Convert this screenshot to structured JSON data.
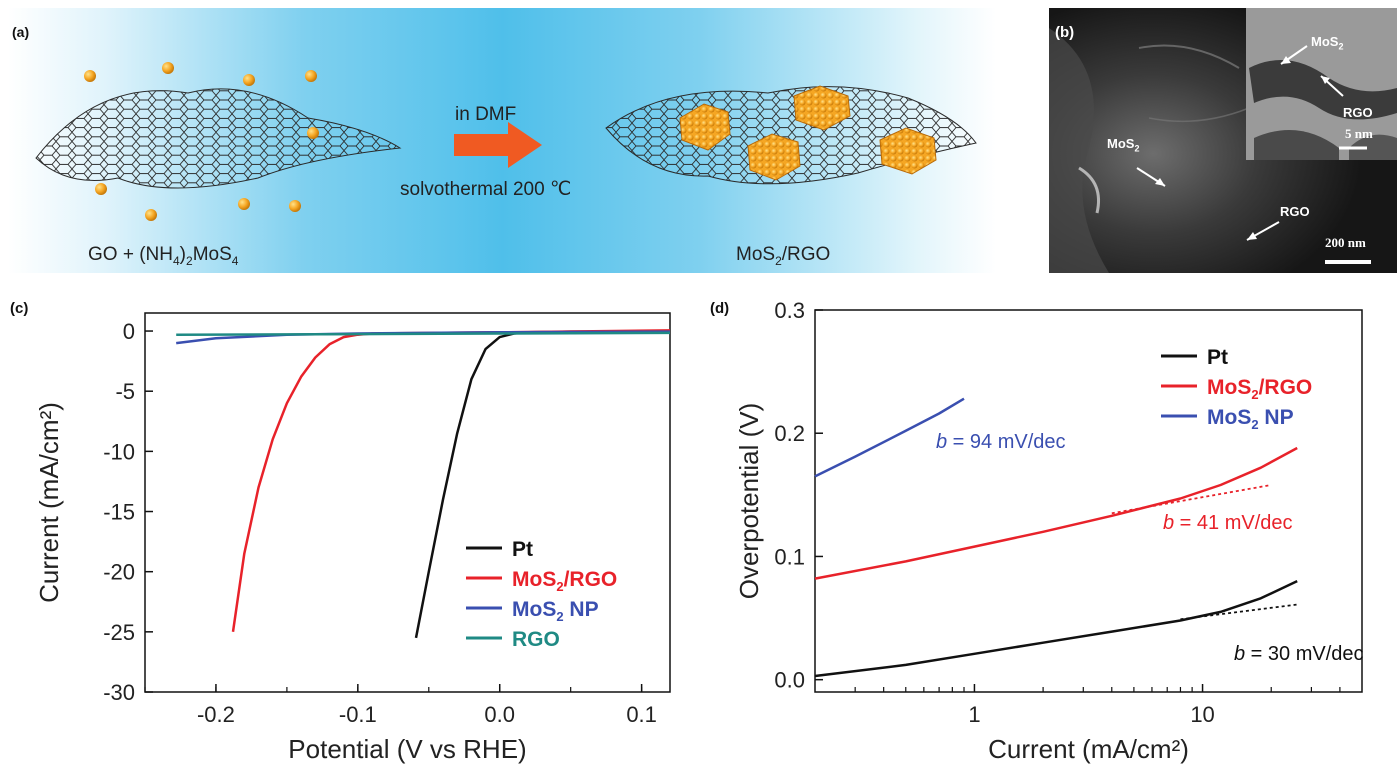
{
  "panel_a": {
    "label": "(a)",
    "arrow_top": "in DMF",
    "arrow_bottom": "solvothermal 200 ℃",
    "left_caption": {
      "t1": "GO + (NH",
      "s1": "4",
      "t2": ")",
      "s2": "2",
      "t3": "MoS",
      "s3": "4"
    },
    "right_caption": {
      "t1": "MoS",
      "s1": "2",
      "t2": "/RGO"
    }
  },
  "panel_b": {
    "label": "(b)",
    "mos2_main": {
      "t": "MoS",
      "s": "2"
    },
    "rgo_main": "RGO",
    "scale_main": "200 nm",
    "mos2_inset": {
      "t": "MoS",
      "s": "2"
    },
    "rgo_inset": "RGO",
    "scale_inset": "5 nm"
  },
  "chart_data": [
    {
      "type": "line",
      "panel": "(c)",
      "xlabel": "Potential (V vs RHE)",
      "ylabel": "Current (mA/cm²)",
      "xlim": [
        -0.25,
        0.12
      ],
      "ylim": [
        -30,
        1.5
      ],
      "xticks": [
        -0.2,
        -0.1,
        0.0,
        0.1
      ],
      "xtick_labels": [
        "-0.2",
        "-0.1",
        "0.0",
        "0.1"
      ],
      "yticks": [
        0,
        -5,
        -10,
        -15,
        -20,
        -25,
        -30
      ],
      "ytick_labels": [
        "0",
        "-5",
        "-10",
        "-15",
        "-20",
        "-25",
        "-30"
      ],
      "legend_position": "bottom-right",
      "series": [
        {
          "name": "Pt",
          "color": "#111111",
          "x": [
            -0.059,
            -0.05,
            -0.04,
            -0.03,
            -0.02,
            -0.01,
            0.0,
            0.01,
            0.02,
            0.05,
            0.12
          ],
          "y": [
            -25.5,
            -20.0,
            -14.0,
            -8.5,
            -4.0,
            -1.5,
            -0.5,
            -0.2,
            -0.1,
            -0.05,
            -0.05
          ]
        },
        {
          "name_main": "MoS",
          "name_sub": "2",
          "name_tail": "/RGO",
          "color": "#e8222a",
          "x": [
            -0.188,
            -0.18,
            -0.17,
            -0.16,
            -0.15,
            -0.14,
            -0.13,
            -0.12,
            -0.11,
            -0.1,
            -0.09,
            0.0,
            0.12
          ],
          "y": [
            -25.0,
            -18.5,
            -13.0,
            -9.0,
            -6.0,
            -3.8,
            -2.2,
            -1.1,
            -0.5,
            -0.3,
            -0.2,
            -0.1,
            0.05
          ]
        },
        {
          "name_main": "MoS",
          "name_sub": "2",
          "name_tail": " NP",
          "color": "#3a4fb0",
          "x": [
            -0.228,
            -0.2,
            -0.15,
            -0.1,
            0.0,
            0.12
          ],
          "y": [
            -1.0,
            -0.6,
            -0.3,
            -0.2,
            -0.1,
            -0.05
          ]
        },
        {
          "name": "RGO",
          "color": "#1f8a84",
          "x": [
            -0.228,
            -0.1,
            0.0,
            0.12
          ],
          "y": [
            -0.3,
            -0.25,
            -0.2,
            -0.15
          ]
        }
      ]
    },
    {
      "type": "line",
      "panel": "(d)",
      "xlabel": "Current (mA/cm²)",
      "ylabel": "Overpotential (V)",
      "xscale": "log",
      "xlim": [
        0.2,
        50
      ],
      "ylim": [
        -0.01,
        0.3
      ],
      "xticks": [
        1,
        10
      ],
      "xtick_labels": [
        "1",
        "10"
      ],
      "yticks": [
        0.0,
        0.1,
        0.2,
        0.3
      ],
      "ytick_labels": [
        "0.0",
        "0.1",
        "0.2",
        "0.3"
      ],
      "legend_position": "top-right",
      "series": [
        {
          "name": "Pt",
          "color": "#111111",
          "x": [
            0.2,
            0.5,
            1,
            2,
            4,
            8,
            12,
            18,
            26
          ],
          "y": [
            0.003,
            0.012,
            0.021,
            0.03,
            0.039,
            0.048,
            0.055,
            0.066,
            0.08
          ],
          "fit": {
            "x": [
              8,
              26
            ],
            "y": [
              0.049,
              0.061
            ]
          }
        },
        {
          "name_main": "MoS",
          "name_sub": "2",
          "name_tail": "/RGO",
          "color": "#e8222a",
          "x": [
            0.2,
            0.5,
            1,
            2,
            4,
            8,
            12,
            18,
            26
          ],
          "y": [
            0.082,
            0.096,
            0.108,
            0.12,
            0.133,
            0.147,
            0.158,
            0.172,
            0.188
          ],
          "fit": {
            "x": [
              4,
              20
            ],
            "y": [
              0.135,
              0.158
            ]
          }
        },
        {
          "name_main": "MoS",
          "name_sub": "2",
          "name_tail": " NP",
          "color": "#3a4fb0",
          "x": [
            0.2,
            0.3,
            0.5,
            0.7,
            0.9
          ],
          "y": [
            0.165,
            0.181,
            0.202,
            0.216,
            0.228
          ]
        }
      ],
      "annotations": [
        {
          "italic": "b",
          "text": " = 94 mV/dec",
          "color": "#3a4fb0"
        },
        {
          "italic": "b",
          "text": " = 41 mV/dec",
          "color": "#e8222a"
        },
        {
          "italic": "b",
          "text": " = 30 mV/dec",
          "color": "#111111"
        }
      ]
    }
  ],
  "panel_labels": {
    "c": "(c)",
    "d": "(d)"
  }
}
